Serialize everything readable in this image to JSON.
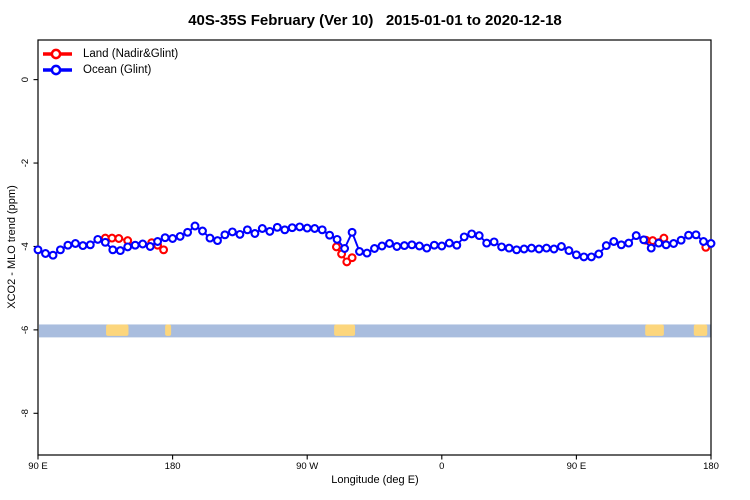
{
  "header": {
    "title": "40S-35S February (Ver 10)   2015-01-01 to 2020-12-18"
  },
  "legend": {
    "items": [
      {
        "label": "Land (Nadir&Glint)",
        "color": "#ff0000"
      },
      {
        "label": "Ocean (Glint)",
        "color": "#0000ff"
      }
    ]
  },
  "axes": {
    "xlabel": "Longitude (deg E)",
    "ylabel": "XCO2 - MLO trend (ppm)"
  },
  "chart_data": {
    "type": "scatter",
    "title": "40S-35S February (Ver 10)   2015-01-01 to 2020-12-18",
    "xlabel": "Longitude (deg E)",
    "ylabel": "XCO2 - MLO trend (ppm)",
    "xlim": [
      90,
      540
    ],
    "ylim": [
      -9.0,
      0.95
    ],
    "grid": false,
    "legend_position": "top-left-inside",
    "x_ticks": [
      {
        "pos": 90,
        "label": "90 E"
      },
      {
        "pos": 180,
        "label": "180"
      },
      {
        "pos": 270,
        "label": "90 W"
      },
      {
        "pos": 360,
        "label": "0"
      },
      {
        "pos": 450,
        "label": "90 E"
      },
      {
        "pos": 540,
        "label": "180"
      }
    ],
    "y_ticks": [
      {
        "pos": 0,
        "label": "0"
      },
      {
        "pos": -2,
        "label": "-2"
      },
      {
        "pos": -4,
        "label": "-4"
      },
      {
        "pos": -6,
        "label": "-6"
      },
      {
        "pos": -8,
        "label": "-8"
      }
    ],
    "series": [
      {
        "name": "Land (Nadir&Glint)",
        "color": "#ff0000",
        "marker": "open-circle",
        "clusters": [
          [
            [
              135,
              -3.8
            ],
            [
              139.5,
              -3.8
            ],
            [
              144,
              -3.81
            ],
            [
              150,
              -3.86
            ]
          ],
          [
            [
              166,
              -3.91
            ],
            [
              170,
              -3.97
            ],
            [
              174,
              -4.08
            ]
          ],
          [
            [
              289.5,
              -4.01
            ],
            [
              293,
              -4.18
            ],
            [
              296.5,
              -4.37
            ],
            [
              300,
              -4.27
            ]
          ],
          [
            [
              496.5,
              -3.85
            ],
            [
              501,
              -3.86
            ],
            [
              508.5,
              -3.8
            ]
          ],
          [
            [
              536.5,
              -4.02
            ]
          ]
        ]
      },
      {
        "name": "Ocean (Glint)",
        "color": "#0000ff",
        "marker": "open-circle",
        "points": [
          [
            90,
            -4.08
          ],
          [
            95,
            -4.17
          ],
          [
            100,
            -4.21
          ],
          [
            105,
            -4.08
          ],
          [
            110,
            -3.97
          ],
          [
            115,
            -3.93
          ],
          [
            120,
            -3.98
          ],
          [
            125,
            -3.96
          ],
          [
            130,
            -3.83
          ],
          [
            135,
            -3.9
          ],
          [
            140,
            -4.08
          ],
          [
            145,
            -4.1
          ],
          [
            150,
            -4.01
          ],
          [
            155,
            -3.97
          ],
          [
            160,
            -3.94
          ],
          [
            165,
            -4.0
          ],
          [
            170,
            -3.88
          ],
          [
            175,
            -3.79
          ],
          [
            180,
            -3.81
          ],
          [
            185,
            -3.76
          ],
          [
            190,
            -3.66
          ],
          [
            195,
            -3.51
          ],
          [
            200,
            -3.63
          ],
          [
            205,
            -3.8
          ],
          [
            210,
            -3.86
          ],
          [
            215,
            -3.72
          ],
          [
            220,
            -3.65
          ],
          [
            225,
            -3.71
          ],
          [
            230,
            -3.6
          ],
          [
            235,
            -3.69
          ],
          [
            240,
            -3.57
          ],
          [
            245,
            -3.64
          ],
          [
            250,
            -3.54
          ],
          [
            255,
            -3.6
          ],
          [
            260,
            -3.55
          ],
          [
            265,
            -3.53
          ],
          [
            270,
            -3.56
          ],
          [
            275,
            -3.57
          ],
          [
            280,
            -3.6
          ],
          [
            285,
            -3.73
          ],
          [
            290,
            -3.83
          ],
          [
            295,
            -4.05
          ],
          [
            300,
            -3.66
          ],
          [
            305,
            -4.12
          ],
          [
            310,
            -4.16
          ],
          [
            315,
            -4.05
          ],
          [
            320,
            -3.99
          ],
          [
            325,
            -3.93
          ],
          [
            330,
            -4.0
          ],
          [
            335,
            -3.98
          ],
          [
            340,
            -3.96
          ],
          [
            345,
            -3.99
          ],
          [
            350,
            -4.04
          ],
          [
            355,
            -3.97
          ],
          [
            360,
            -3.99
          ],
          [
            365,
            -3.92
          ],
          [
            370,
            -3.97
          ],
          [
            375,
            -3.77
          ],
          [
            380,
            -3.7
          ],
          [
            385,
            -3.74
          ],
          [
            390,
            -3.92
          ],
          [
            395,
            -3.89
          ],
          [
            400,
            -4.01
          ],
          [
            405,
            -4.04
          ],
          [
            410,
            -4.08
          ],
          [
            415,
            -4.06
          ],
          [
            420,
            -4.04
          ],
          [
            425,
            -4.06
          ],
          [
            430,
            -4.04
          ],
          [
            435,
            -4.06
          ],
          [
            440,
            -4.0
          ],
          [
            445,
            -4.1
          ],
          [
            450,
            -4.2
          ],
          [
            455,
            -4.25
          ],
          [
            460,
            -4.25
          ],
          [
            465,
            -4.18
          ],
          [
            470,
            -3.98
          ],
          [
            475,
            -3.88
          ],
          [
            480,
            -3.96
          ],
          [
            485,
            -3.92
          ],
          [
            490,
            -3.74
          ],
          [
            495,
            -3.84
          ],
          [
            500,
            -4.04
          ],
          [
            505,
            -3.92
          ],
          [
            510,
            -3.96
          ],
          [
            515,
            -3.93
          ],
          [
            520,
            -3.85
          ],
          [
            525,
            -3.73
          ],
          [
            530,
            -3.72
          ],
          [
            535,
            -3.88
          ],
          [
            540,
            -3.93
          ]
        ]
      }
    ],
    "latitude_band": {
      "description": "40S-35S surface strip: ocean in light blue, land masses in tan",
      "value_range": [
        -5.87,
        -6.18
      ],
      "ocean_color": "#a9bdde",
      "land_color": "#fcd67d",
      "land_spans": [
        [
          135.5,
          150.5
        ],
        [
          175,
          179
        ],
        [
          288,
          302
        ],
        [
          496,
          508.5
        ],
        [
          528.5,
          537.5
        ]
      ]
    }
  }
}
